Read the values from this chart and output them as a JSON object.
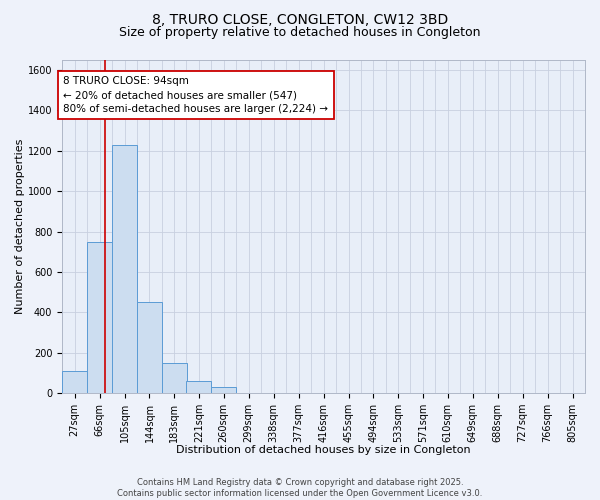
{
  "title": "8, TRURO CLOSE, CONGLETON, CW12 3BD",
  "subtitle": "Size of property relative to detached houses in Congleton",
  "xlabel": "Distribution of detached houses by size in Congleton",
  "ylabel": "Number of detached properties",
  "bar_labels": [
    "27sqm",
    "66sqm",
    "105sqm",
    "144sqm",
    "183sqm",
    "221sqm",
    "260sqm",
    "299sqm",
    "338sqm",
    "377sqm",
    "416sqm",
    "455sqm",
    "494sqm",
    "533sqm",
    "571sqm",
    "610sqm",
    "649sqm",
    "688sqm",
    "727sqm",
    "766sqm",
    "805sqm"
  ],
  "bar_values": [
    110,
    750,
    1230,
    450,
    150,
    60,
    32,
    0,
    0,
    0,
    0,
    0,
    0,
    0,
    0,
    0,
    0,
    0,
    0,
    0,
    0
  ],
  "bin_edges": [
    27,
    66,
    105,
    144,
    183,
    221,
    260,
    299,
    338,
    377,
    416,
    455,
    494,
    533,
    571,
    610,
    649,
    688,
    727,
    766,
    805
  ],
  "bar_color": "#ccddf0",
  "bar_edgecolor": "#5b9bd5",
  "property_line_x": 94,
  "property_line_color": "#cc0000",
  "annotation_title": "8 TRURO CLOSE: 94sqm",
  "annotation_line1": "← 20% of detached houses are smaller (547)",
  "annotation_line2": "80% of semi-detached houses are larger (2,224) →",
  "annotation_box_edgecolor": "#cc0000",
  "ylim": [
    0,
    1650
  ],
  "yticks": [
    0,
    200,
    400,
    600,
    800,
    1000,
    1200,
    1400,
    1600
  ],
  "footer_line1": "Contains HM Land Registry data © Crown copyright and database right 2025.",
  "footer_line2": "Contains public sector information licensed under the Open Government Licence v3.0.",
  "bg_color": "#eef2fa",
  "plot_bg_color": "#e8eef8",
  "grid_color": "#c8d0e0",
  "title_fontsize": 10,
  "subtitle_fontsize": 9,
  "axis_label_fontsize": 8,
  "tick_fontsize": 7,
  "footer_fontsize": 6
}
